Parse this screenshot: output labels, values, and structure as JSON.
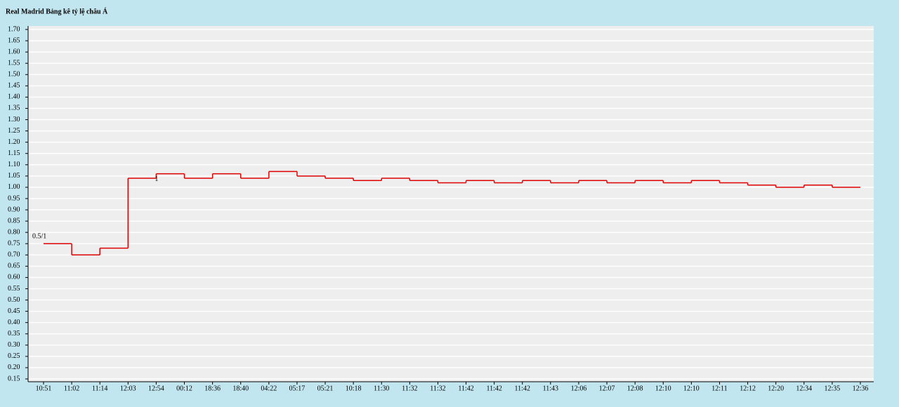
{
  "chart_data": {
    "type": "step",
    "title": "Real Madrid Bảng kê tỷ lệ châu Á",
    "categories": [
      "10:51",
      "11:02",
      "11:14",
      "12:03",
      "12:54",
      "00:12",
      "18:36",
      "18:40",
      "04:22",
      "05:17",
      "05:21",
      "10:18",
      "11:30",
      "11:32",
      "11:32",
      "11:42",
      "11:42",
      "11:42",
      "11:43",
      "12:06",
      "12:07",
      "12:08",
      "12:10",
      "12:10",
      "12:11",
      "12:12",
      "12:20",
      "12:34",
      "12:35",
      "12:36"
    ],
    "series": [
      {
        "color": "#e00000",
        "values": [
          0.75,
          0.7,
          0.73,
          1.04,
          1.06,
          1.04,
          1.06,
          1.04,
          1.07,
          1.05,
          1.04,
          1.03,
          1.04,
          1.03,
          1.02,
          1.03,
          1.02,
          1.03,
          1.02,
          1.03,
          1.02,
          1.03,
          1.02,
          1.03,
          1.02,
          1.01,
          1.0,
          1.01,
          1.0,
          1.0
        ]
      }
    ],
    "annotations": [
      {
        "text": "0.5/1",
        "x": "10:51"
      },
      {
        "text": "1",
        "x": "12:54"
      }
    ],
    "ylim": [
      0.15,
      1.7
    ],
    "yticks": [
      0.15,
      {
        "value": 0.2,
        "label": "0.20"
      },
      0.25,
      {
        "value": 0.3,
        "label": "0.30"
      },
      0.35,
      {
        "value": 0.4,
        "label": "0.40"
      },
      0.45,
      {
        "value": 0.5,
        "label": "0.50"
      },
      0.55,
      {
        "value": 0.6,
        "label": "0.60"
      },
      0.65,
      {
        "value": 0.7,
        "label": "0.70"
      },
      0.75,
      {
        "value": 0.8,
        "label": "0.80"
      },
      0.85,
      {
        "value": 0.9,
        "label": "0.90"
      },
      0.95,
      {
        "value": 1,
        "label": "1.00"
      },
      1.05,
      {
        "value": 1.1,
        "label": "1.10"
      },
      1.15,
      {
        "value": 1.2,
        "label": "1.20"
      },
      1.25,
      {
        "value": 1.3,
        "label": "1.30"
      },
      1.35,
      {
        "value": 1.4,
        "label": "1.40"
      },
      1.45,
      {
        "value": 1.5,
        "label": "1.50"
      },
      1.55,
      {
        "value": 1.6,
        "label": "1.60"
      },
      1.65,
      {
        "value": 1.7,
        "label": "1.70"
      }
    ],
    "grid": true
  }
}
